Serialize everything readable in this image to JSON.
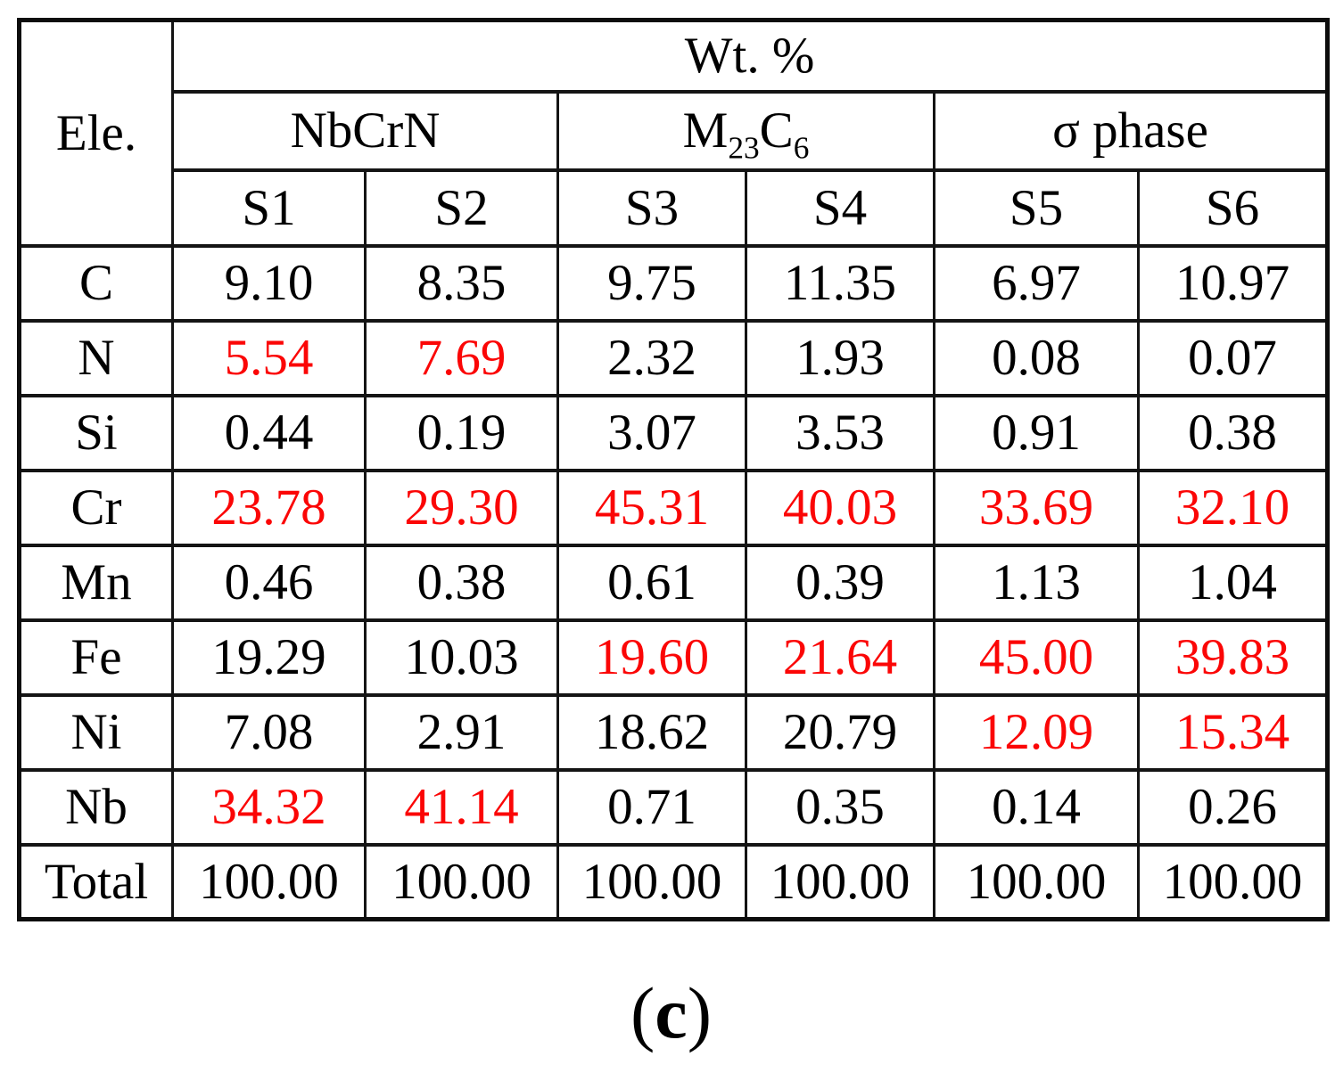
{
  "colors": {
    "highlight": "#fb0606",
    "text": "#000000",
    "border": "#141414"
  },
  "table": {
    "corner": "Ele.",
    "unit_header": "Wt. %",
    "phases": [
      {
        "name": "NbCrN",
        "parts": [
          {
            "t": "NbCrN",
            "sub": false
          }
        ]
      },
      {
        "name": "M23C6",
        "parts": [
          {
            "t": "M",
            "sub": false
          },
          {
            "t": "23",
            "sub": true
          },
          {
            "t": "C",
            "sub": false
          },
          {
            "t": "6",
            "sub": true
          }
        ]
      },
      {
        "name": "sigma-phase",
        "parts": [
          {
            "t": "σ phase",
            "sub": false
          }
        ]
      }
    ],
    "sample_headers": [
      "S1",
      "S2",
      "S3",
      "S4",
      "S5",
      "S6"
    ],
    "rows": [
      {
        "element": "C",
        "values": [
          "9.10",
          "8.35",
          "9.75",
          "11.35",
          "6.97",
          "10.97"
        ],
        "red": [
          false,
          false,
          false,
          false,
          false,
          false
        ]
      },
      {
        "element": "N",
        "values": [
          "5.54",
          "7.69",
          "2.32",
          "1.93",
          "0.08",
          "0.07"
        ],
        "red": [
          true,
          true,
          false,
          false,
          false,
          false
        ]
      },
      {
        "element": "Si",
        "values": [
          "0.44",
          "0.19",
          "3.07",
          "3.53",
          "0.91",
          "0.38"
        ],
        "red": [
          false,
          false,
          false,
          false,
          false,
          false
        ]
      },
      {
        "element": "Cr",
        "values": [
          "23.78",
          "29.30",
          "45.31",
          "40.03",
          "33.69",
          "32.10"
        ],
        "red": [
          true,
          true,
          true,
          true,
          true,
          true
        ]
      },
      {
        "element": "Mn",
        "values": [
          "0.46",
          "0.38",
          "0.61",
          "0.39",
          "1.13",
          "1.04"
        ],
        "red": [
          false,
          false,
          false,
          false,
          false,
          false
        ]
      },
      {
        "element": "Fe",
        "values": [
          "19.29",
          "10.03",
          "19.60",
          "21.64",
          "45.00",
          "39.83"
        ],
        "red": [
          false,
          false,
          true,
          true,
          true,
          true
        ]
      },
      {
        "element": "Ni",
        "values": [
          "7.08",
          "2.91",
          "18.62",
          "20.79",
          "12.09",
          "15.34"
        ],
        "red": [
          false,
          false,
          false,
          false,
          true,
          true
        ]
      },
      {
        "element": "Nb",
        "values": [
          "34.32",
          "41.14",
          "0.71",
          "0.35",
          "0.14",
          "0.26"
        ],
        "red": [
          true,
          true,
          false,
          false,
          false,
          false
        ]
      },
      {
        "element": "Total",
        "values": [
          "100.00",
          "100.00",
          "100.00",
          "100.00",
          "100.00",
          "100.00"
        ],
        "red": [
          false,
          false,
          false,
          false,
          false,
          false
        ]
      }
    ]
  },
  "caption": {
    "open": "(",
    "letter": "c",
    "close": ")"
  }
}
